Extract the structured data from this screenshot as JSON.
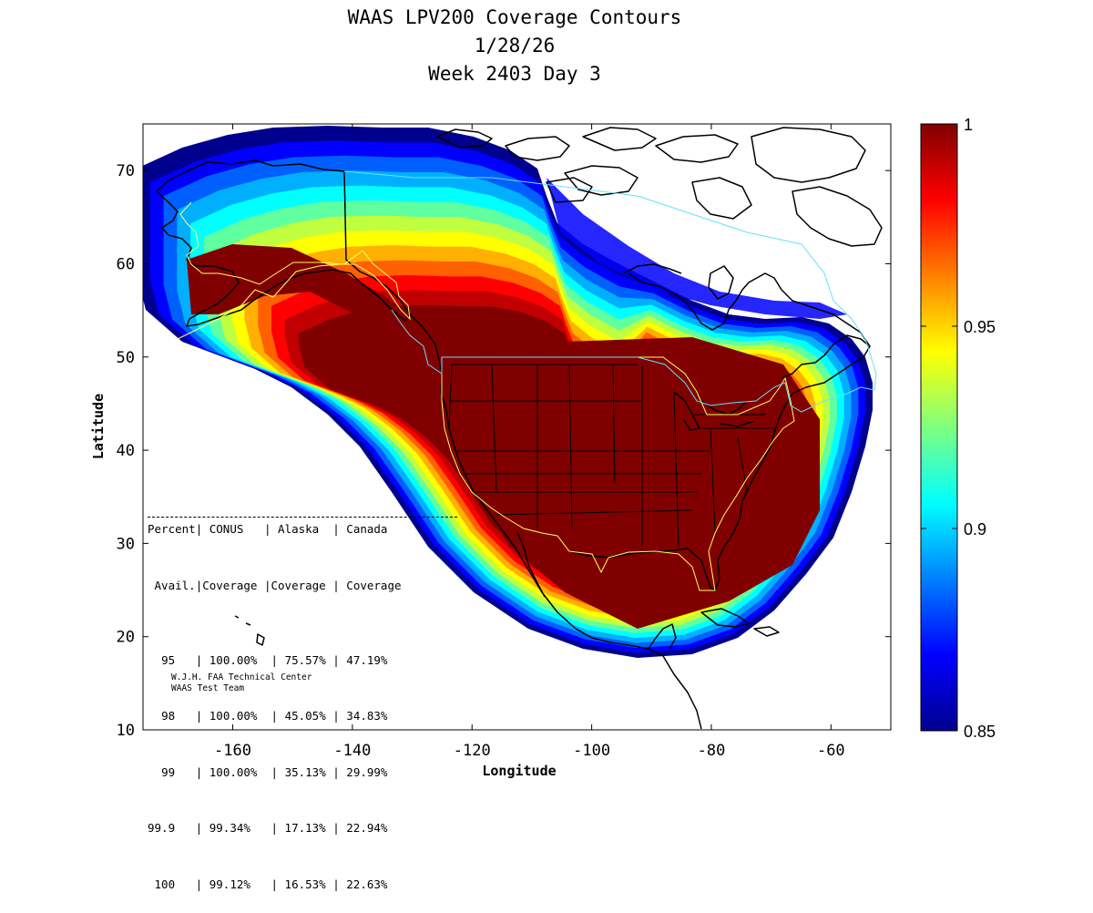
{
  "title_lines": [
    "WAAS LPV200 Coverage Contours",
    "1/28/26",
    "Week 2403 Day 3"
  ],
  "chart_data": {
    "type": "heatmap",
    "xlabel": "Longitude",
    "ylabel": "Latitude",
    "xlim": [
      -175,
      -50
    ],
    "ylim": [
      10,
      75
    ],
    "xticks": [
      -160,
      -140,
      -120,
      -100,
      -80,
      -60
    ],
    "yticks": [
      10,
      20,
      30,
      40,
      50,
      60,
      70
    ],
    "colorbar": {
      "min": 0.85,
      "max": 1,
      "ticks": [
        1,
        0.95,
        0.9,
        0.85
      ],
      "colormap": "jet"
    },
    "coverage_table": {
      "header1": [
        "Percent",
        "CONUS",
        "Alaska",
        "Canada"
      ],
      "header2": [
        "Avail.",
        "Coverage",
        "Coverage",
        "Coverage"
      ],
      "rows": [
        [
          "95",
          "100.00%",
          "75.57%",
          "47.19%"
        ],
        [
          "98",
          "100.00%",
          "45.05%",
          "34.83%"
        ],
        [
          "99",
          "100.00%",
          "35.13%",
          "29.99%"
        ],
        [
          "99.9",
          "99.34%",
          "17.13%",
          "22.94%"
        ],
        [
          "100",
          "99.12%",
          "16.53%",
          "22.63%"
        ]
      ]
    }
  },
  "credit_lines": [
    "W.J.H. FAA Technical Center",
    "WAAS Test Team"
  ]
}
